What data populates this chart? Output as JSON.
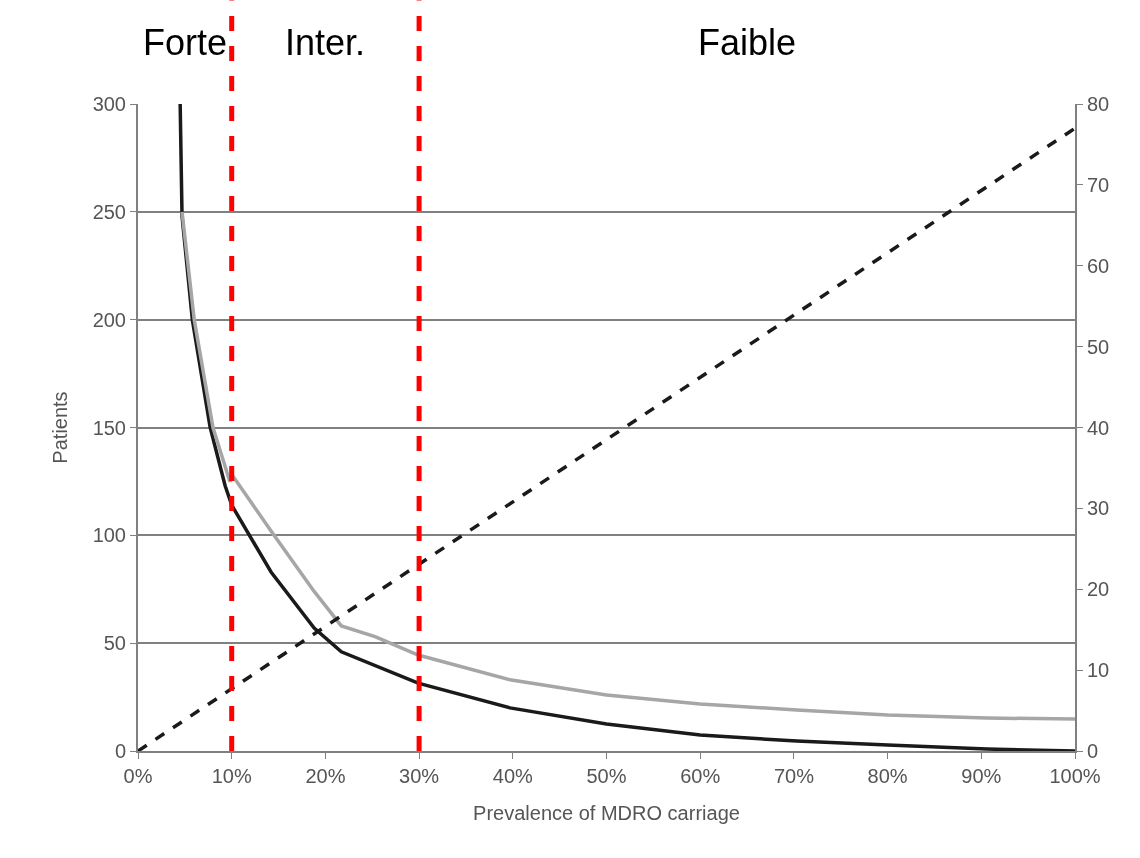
{
  "chart_data": {
    "type": "line",
    "xlabel": "Prevalence of MDRO carriage",
    "ylabel": "Patients",
    "series": [
      {
        "color": "#1a1a1a",
        "line_style": "solid",
        "x": [
          4.5,
          4.7,
          5.8,
          7.7,
          9.3,
          10,
          14.2,
          18.8,
          21.7,
          29.9,
          39.7,
          50,
          60,
          70.3,
          80,
          90.6,
          100
        ],
        "values": [
          300,
          248,
          200,
          150,
          123,
          114,
          83,
          57,
          46,
          31.5,
          20,
          12.5,
          7.4,
          4.6,
          2.8,
          0.9,
          0
        ]
      },
      {
        "color": "#a6a6a6",
        "line_style": "solid",
        "x": [
          4.7,
          6,
          8,
          9.8,
          10.2,
          14.2,
          18.8,
          21.7,
          25.3,
          29.9,
          39.7,
          50,
          60,
          70.3,
          80,
          90.6,
          100
        ],
        "values": [
          250,
          200,
          150,
          125,
          127,
          102,
          74,
          58,
          53,
          44.5,
          33,
          26,
          21.8,
          19,
          16.7,
          15.3,
          14.8
        ]
      },
      {
        "color": "#1a1a1a",
        "line_style": "dashed",
        "axis": "y2",
        "x": [
          0,
          100
        ],
        "values": [
          0,
          77
        ]
      }
    ],
    "xlim": [
      0,
      100
    ],
    "xticks": [
      {
        "value": 0,
        "label": "0%"
      },
      {
        "value": 10,
        "label": "10%"
      },
      {
        "value": 20,
        "label": "20%"
      },
      {
        "value": 30,
        "label": "30%"
      },
      {
        "value": 40,
        "label": "40%"
      },
      {
        "value": 50,
        "label": "50%"
      },
      {
        "value": 60,
        "label": "60%"
      },
      {
        "value": 70,
        "label": "70%"
      },
      {
        "value": 80,
        "label": "80%"
      },
      {
        "value": 90,
        "label": "90%"
      },
      {
        "value": 100,
        "label": "100%"
      }
    ],
    "ylim": [
      0,
      300
    ],
    "yticks": [
      0,
      50,
      100,
      150,
      200,
      250,
      300
    ],
    "y2lim": [
      0,
      80
    ],
    "y2ticks": [
      0,
      10,
      20,
      30,
      40,
      50,
      60,
      70,
      80
    ],
    "ref_lines": [
      {
        "axis": "x",
        "value": 10,
        "color": "#ff0000",
        "line_style": "dashed"
      },
      {
        "axis": "x",
        "value": 30,
        "color": "#ff0000",
        "line_style": "dashed"
      }
    ],
    "annotations": [
      "Forte",
      "Inter.",
      "Faible"
    ],
    "grid": "y"
  }
}
